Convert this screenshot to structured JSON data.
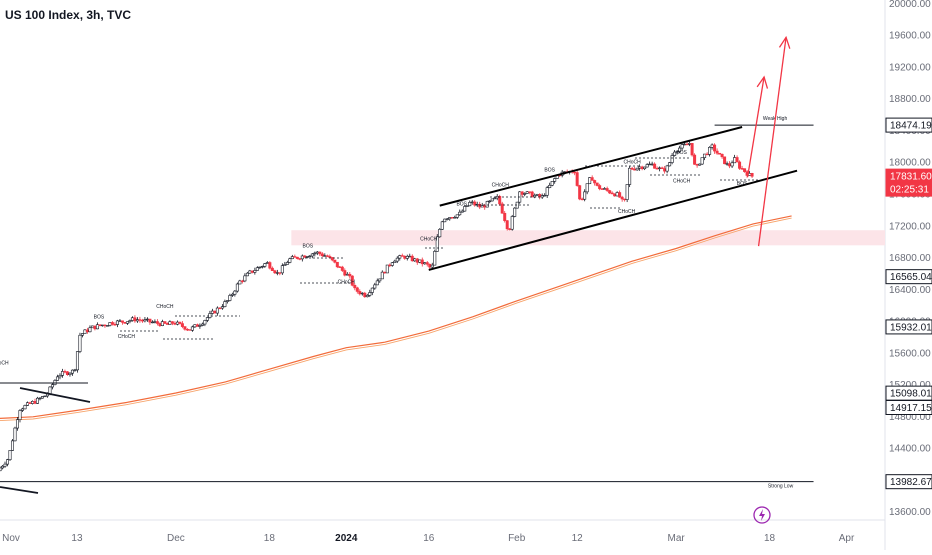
{
  "chart_data": {
    "type": "candlestick",
    "title": "US 100 Index, 3h, TVC",
    "colors": {
      "up": "#131722",
      "down": "#f23645",
      "ma": "#f26b3a",
      "zone": "#fce4e8",
      "arrow": "#f23645",
      "channel": "#000000"
    },
    "y_axis": {
      "range": [
        13500,
        20050
      ],
      "ticks": [
        13600,
        14000,
        14400,
        14800,
        15200,
        15600,
        16000,
        16400,
        16800,
        17200,
        17600,
        18000,
        18400,
        18800,
        19200,
        19600,
        20000
      ],
      "tick_labels": [
        "13600.00",
        "14000.00",
        "14400.00",
        "14800.00",
        "15200.00",
        "15600.00",
        "16000.00",
        "16400.00",
        "16800.00",
        "17200.00",
        "17600.00",
        "18000.00",
        "18400.00",
        "18800.00",
        "19200.00",
        "19600.00",
        "20000.00"
      ]
    },
    "x_axis": {
      "range": [
        "2023-10-30",
        "2024-04-08"
      ],
      "ticks": [
        {
          "date": "2023-11-01",
          "label": "Nov",
          "bold": false
        },
        {
          "date": "2023-11-13",
          "label": "13",
          "bold": false
        },
        {
          "date": "2023-12-01",
          "label": "Dec",
          "bold": false
        },
        {
          "date": "2023-12-18",
          "label": "18",
          "bold": false
        },
        {
          "date": "2024-01-01",
          "label": "2024",
          "bold": true
        },
        {
          "date": "2024-01-16",
          "label": "16",
          "bold": false
        },
        {
          "date": "2024-02-01",
          "label": "Feb",
          "bold": false
        },
        {
          "date": "2024-02-12",
          "label": "12",
          "bold": false
        },
        {
          "date": "2024-03-01",
          "label": "Mar",
          "bold": false
        },
        {
          "date": "2024-03-18",
          "label": "18",
          "bold": false
        },
        {
          "date": "2024-04-01",
          "label": "Apr",
          "bold": false
        }
      ]
    },
    "series": [
      {
        "kind": "price",
        "points": [
          {
            "date": "2023-10-30",
            "value": 14120
          },
          {
            "date": "2023-11-01",
            "value": 14280
          },
          {
            "date": "2023-11-02",
            "value": 14600
          },
          {
            "date": "2023-11-03",
            "value": 14900
          },
          {
            "date": "2023-11-06",
            "value": 15000
          },
          {
            "date": "2023-11-08",
            "value": 15080
          },
          {
            "date": "2023-11-10",
            "value": 15330
          },
          {
            "date": "2023-11-13",
            "value": 15380
          },
          {
            "date": "2023-11-14",
            "value": 15830
          },
          {
            "date": "2023-11-16",
            "value": 15920
          },
          {
            "date": "2023-11-20",
            "value": 15990
          },
          {
            "date": "2023-11-22",
            "value": 16000
          },
          {
            "date": "2023-11-24",
            "value": 16030
          },
          {
            "date": "2023-11-28",
            "value": 15980
          },
          {
            "date": "2023-11-30",
            "value": 15960
          },
          {
            "date": "2023-12-01",
            "value": 15990
          },
          {
            "date": "2023-12-04",
            "value": 15900
          },
          {
            "date": "2023-12-06",
            "value": 15980
          },
          {
            "date": "2023-12-08",
            "value": 16100
          },
          {
            "date": "2023-12-11",
            "value": 16270
          },
          {
            "date": "2023-12-13",
            "value": 16500
          },
          {
            "date": "2023-12-15",
            "value": 16620
          },
          {
            "date": "2023-12-18",
            "value": 16740
          },
          {
            "date": "2023-12-20",
            "value": 16600
          },
          {
            "date": "2023-12-22",
            "value": 16780
          },
          {
            "date": "2023-12-27",
            "value": 16870
          },
          {
            "date": "2023-12-29",
            "value": 16820
          },
          {
            "date": "2024-01-02",
            "value": 16560
          },
          {
            "date": "2024-01-03",
            "value": 16400
          },
          {
            "date": "2024-01-05",
            "value": 16330
          },
          {
            "date": "2024-01-08",
            "value": 16600
          },
          {
            "date": "2024-01-10",
            "value": 16780
          },
          {
            "date": "2024-01-12",
            "value": 16820
          },
          {
            "date": "2024-01-16",
            "value": 16720
          },
          {
            "date": "2024-01-17",
            "value": 16660
          },
          {
            "date": "2024-01-18",
            "value": 17050
          },
          {
            "date": "2024-01-19",
            "value": 17300
          },
          {
            "date": "2024-01-22",
            "value": 17350
          },
          {
            "date": "2024-01-24",
            "value": 17500
          },
          {
            "date": "2024-01-26",
            "value": 17440
          },
          {
            "date": "2024-01-29",
            "value": 17560
          },
          {
            "date": "2024-01-31",
            "value": 17140
          },
          {
            "date": "2024-02-02",
            "value": 17640
          },
          {
            "date": "2024-02-06",
            "value": 17560
          },
          {
            "date": "2024-02-09",
            "value": 17860
          },
          {
            "date": "2024-02-12",
            "value": 17900
          },
          {
            "date": "2024-02-13",
            "value": 17500
          },
          {
            "date": "2024-02-15",
            "value": 17830
          },
          {
            "date": "2024-02-16",
            "value": 17700
          },
          {
            "date": "2024-02-20",
            "value": 17590
          },
          {
            "date": "2024-02-21",
            "value": 17470
          },
          {
            "date": "2024-02-22",
            "value": 17920
          },
          {
            "date": "2024-02-26",
            "value": 17980
          },
          {
            "date": "2024-02-28",
            "value": 17900
          },
          {
            "date": "2024-02-29",
            "value": 17950
          },
          {
            "date": "2024-03-01",
            "value": 18150
          },
          {
            "date": "2024-03-04",
            "value": 18250
          },
          {
            "date": "2024-03-05",
            "value": 17900
          },
          {
            "date": "2024-03-06",
            "value": 18050
          },
          {
            "date": "2024-03-08",
            "value": 18200
          },
          {
            "date": "2024-03-11",
            "value": 17950
          },
          {
            "date": "2024-03-12",
            "value": 18050
          },
          {
            "date": "2024-03-13",
            "value": 17950
          },
          {
            "date": "2024-03-15",
            "value": 17831.6
          }
        ]
      },
      {
        "kind": "moving-average",
        "points": [
          {
            "date": "2023-10-30",
            "value": 14780
          },
          {
            "date": "2023-11-05",
            "value": 14800
          },
          {
            "date": "2023-11-13",
            "value": 14880
          },
          {
            "date": "2023-11-22",
            "value": 14980
          },
          {
            "date": "2023-12-01",
            "value": 15100
          },
          {
            "date": "2023-12-10",
            "value": 15240
          },
          {
            "date": "2023-12-18",
            "value": 15400
          },
          {
            "date": "2023-12-26",
            "value": 15560
          },
          {
            "date": "2024-01-01",
            "value": 15670
          },
          {
            "date": "2024-01-08",
            "value": 15740
          },
          {
            "date": "2024-01-16",
            "value": 15880
          },
          {
            "date": "2024-01-24",
            "value": 16060
          },
          {
            "date": "2024-02-01",
            "value": 16260
          },
          {
            "date": "2024-02-12",
            "value": 16520
          },
          {
            "date": "2024-02-22",
            "value": 16760
          },
          {
            "date": "2024-03-01",
            "value": 16920
          },
          {
            "date": "2024-03-08",
            "value": 17080
          },
          {
            "date": "2024-03-15",
            "value": 17230
          },
          {
            "date": "2024-03-22",
            "value": 17330
          }
        ]
      }
    ],
    "channel": {
      "upper": [
        {
          "date": "2024-01-18",
          "value": 17460
        },
        {
          "date": "2024-03-13",
          "value": 18450
        }
      ],
      "lower": [
        {
          "date": "2024-01-16",
          "value": 16650
        },
        {
          "date": "2024-03-23",
          "value": 17900
        }
      ]
    },
    "zone": {
      "from": 16960,
      "to": 17150,
      "start": "2023-12-22"
    },
    "horizontal_levels": [
      {
        "value": 18474.19,
        "start": "2024-03-08",
        "end": "2024-03-26",
        "label": "Weak High"
      },
      {
        "value": 13982.67,
        "start": "2023-10-30",
        "end": "2024-03-26",
        "label": "Strong Low"
      }
    ],
    "arrows": [
      {
        "from": {
          "date": "2024-03-16",
          "value": 16950
        },
        "to": {
          "date": "2024-03-21",
          "value": 19580
        }
      },
      {
        "from": {
          "date": "2024-03-14",
          "value": 17820
        },
        "to": {
          "date": "2024-03-17",
          "value": 19080
        }
      }
    ],
    "annotations": [
      {
        "text": "BOS",
        "date": "2023-11-17",
        "value": 16040
      },
      {
        "text": "CHoCH",
        "date": "2023-11-29",
        "value": 16170
      },
      {
        "text": "CHoCH",
        "date": "2023-11-22",
        "value": 15790
      },
      {
        "text": "BOS",
        "date": "2023-12-25",
        "value": 16930
      },
      {
        "text": "CHoCH",
        "date": "2024-01-01",
        "value": 16480
      },
      {
        "text": "CHoCH",
        "date": "2024-01-16",
        "value": 17020
      },
      {
        "text": "BOS",
        "date": "2024-01-22",
        "value": 17460
      },
      {
        "text": "CHoCH",
        "date": "2024-01-29",
        "value": 17700
      },
      {
        "text": "BOS",
        "date": "2024-02-07",
        "value": 17890
      },
      {
        "text": "CHoCH",
        "date": "2024-02-22",
        "value": 17990
      },
      {
        "text": "CHoCH",
        "date": "2024-02-21",
        "value": 17370
      },
      {
        "text": "BOS",
        "date": "2024-03-02",
        "value": 18110
      },
      {
        "text": "CHoCH",
        "date": "2024-03-02",
        "value": 17750
      },
      {
        "text": "BOS",
        "date": "2024-03-13",
        "value": 17720
      },
      {
        "text": "CHoCH",
        "date": "2023-10-30",
        "value": 15460
      },
      {
        "text": "Weak High",
        "date": "2024-03-19",
        "value": 18540
      },
      {
        "text": "Strong Low",
        "date": "2024-03-20",
        "value": 13910
      }
    ],
    "price_tags": [
      {
        "label": "18474.19",
        "value": 18474.19,
        "style": "dark"
      },
      {
        "label": "17831.60",
        "value": 17831.6,
        "style": "red"
      },
      {
        "label": "02:25:31",
        "value": 17831.6,
        "style": "red-sub"
      },
      {
        "label": "16565.04",
        "value": 16565.04,
        "style": "dark"
      },
      {
        "label": "15932.01",
        "value": 15932.01,
        "style": "dark"
      },
      {
        "label": "15098.01",
        "value": 15098.01,
        "style": "dark"
      },
      {
        "label": "14917.15",
        "value": 14917.15,
        "style": "dark"
      },
      {
        "label": "13982.67",
        "value": 13982.67,
        "style": "dark"
      }
    ]
  }
}
